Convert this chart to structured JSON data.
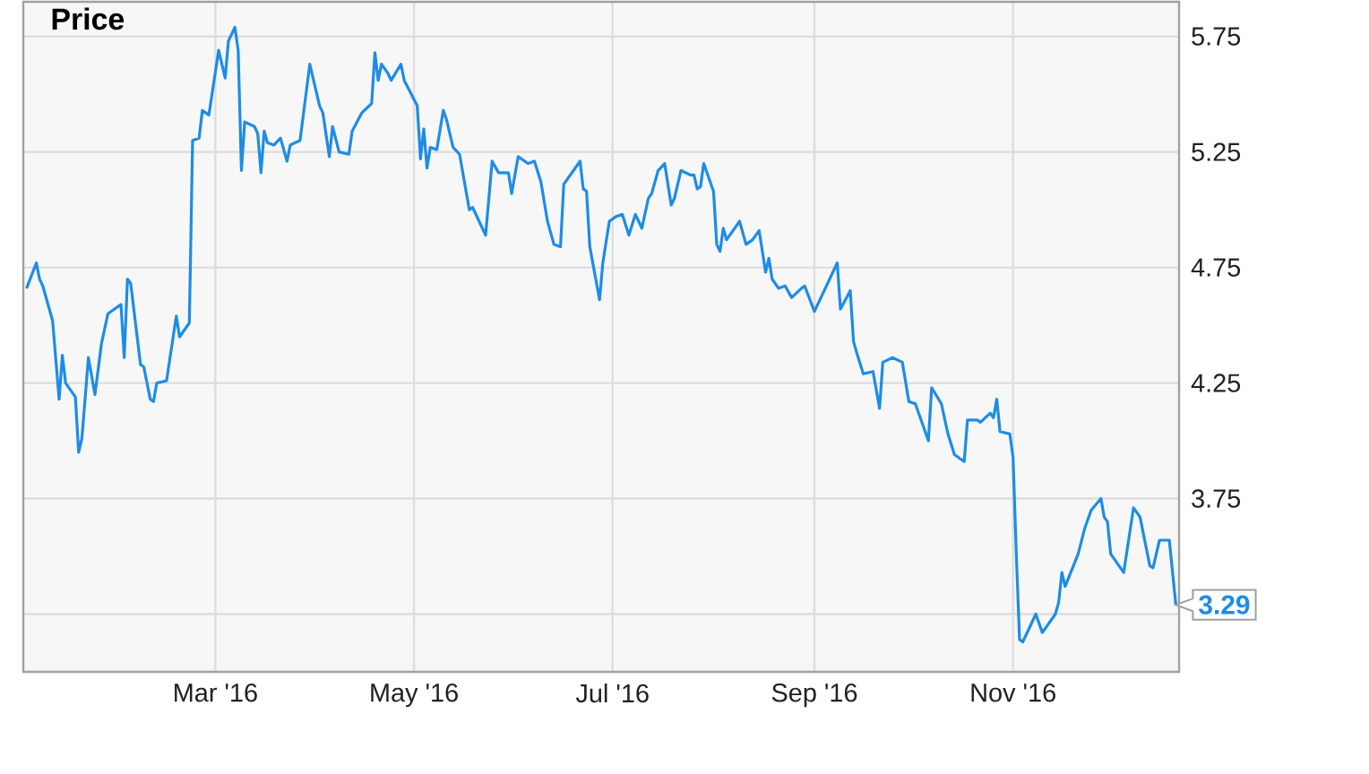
{
  "chart_data": {
    "type": "line",
    "title": "Price",
    "x": [
      "2016-01-03",
      "2016-01-06",
      "2016-01-07",
      "2016-01-08",
      "2016-01-11",
      "2016-01-13",
      "2016-01-14",
      "2016-01-15",
      "2016-01-18",
      "2016-01-19",
      "2016-01-20",
      "2016-01-22",
      "2016-01-24",
      "2016-01-26",
      "2016-01-28",
      "2016-01-30",
      "2016-02-01",
      "2016-02-02",
      "2016-02-03",
      "2016-02-04",
      "2016-02-07",
      "2016-02-08",
      "2016-02-10",
      "2016-02-11",
      "2016-02-12",
      "2016-02-15",
      "2016-02-18",
      "2016-02-19",
      "2016-02-22",
      "2016-02-23",
      "2016-02-25",
      "2016-02-26",
      "2016-02-28",
      "2016-03-02",
      "2016-03-04",
      "2016-03-05",
      "2016-03-07",
      "2016-03-08",
      "2016-03-09",
      "2016-03-10",
      "2016-03-13",
      "2016-03-14",
      "2016-03-15",
      "2016-03-16",
      "2016-03-17",
      "2016-03-19",
      "2016-03-21",
      "2016-03-23",
      "2016-03-24",
      "2016-03-27",
      "2016-03-30",
      "2016-03-31",
      "2016-04-02",
      "2016-04-03",
      "2016-04-05",
      "2016-04-06",
      "2016-04-08",
      "2016-04-11",
      "2016-04-12",
      "2016-04-15",
      "2016-04-18",
      "2016-04-19",
      "2016-04-20",
      "2016-04-21",
      "2016-04-23",
      "2016-04-24",
      "2016-04-27",
      "2016-04-28",
      "2016-05-02",
      "2016-05-03",
      "2016-05-04",
      "2016-05-05",
      "2016-05-06",
      "2016-05-08",
      "2016-05-10",
      "2016-05-11",
      "2016-05-13",
      "2016-05-15",
      "2016-05-18",
      "2016-05-19",
      "2016-05-20",
      "2016-05-23",
      "2016-05-25",
      "2016-05-27",
      "2016-05-30",
      "2016-05-31",
      "2016-06-02",
      "2016-06-05",
      "2016-06-07",
      "2016-06-09",
      "2016-06-11",
      "2016-06-13",
      "2016-06-15",
      "2016-06-16",
      "2016-06-18",
      "2016-06-21",
      "2016-06-22",
      "2016-06-23",
      "2016-06-24",
      "2016-06-27",
      "2016-06-28",
      "2016-06-30",
      "2016-07-02",
      "2016-07-04",
      "2016-07-06",
      "2016-07-08",
      "2016-07-10",
      "2016-07-12",
      "2016-07-13",
      "2016-07-15",
      "2016-07-17",
      "2016-07-19",
      "2016-07-20",
      "2016-07-22",
      "2016-07-25",
      "2016-07-26",
      "2016-07-27",
      "2016-07-28",
      "2016-07-29",
      "2016-08-01",
      "2016-08-02",
      "2016-08-03",
      "2016-08-04",
      "2016-08-05",
      "2016-08-09",
      "2016-08-11",
      "2016-08-13",
      "2016-08-15",
      "2016-08-17",
      "2016-08-18",
      "2016-08-19",
      "2016-08-21",
      "2016-08-23",
      "2016-08-25",
      "2016-08-28",
      "2016-08-29",
      "2016-09-01",
      "2016-09-08",
      "2016-09-09",
      "2016-09-12",
      "2016-09-13",
      "2016-09-14",
      "2016-09-16",
      "2016-09-19",
      "2016-09-21",
      "2016-09-22",
      "2016-09-25",
      "2016-09-28",
      "2016-09-30",
      "2016-10-02",
      "2016-10-06",
      "2016-10-07",
      "2016-10-10",
      "2016-10-12",
      "2016-10-14",
      "2016-10-17",
      "2016-10-18",
      "2016-10-21",
      "2016-10-22",
      "2016-10-25",
      "2016-10-26",
      "2016-10-27",
      "2016-10-28",
      "2016-10-31",
      "2016-11-01",
      "2016-11-02",
      "2016-11-03",
      "2016-11-04",
      "2016-11-08",
      "2016-11-10",
      "2016-11-14",
      "2016-11-15",
      "2016-11-16",
      "2016-11-17",
      "2016-11-21",
      "2016-11-23",
      "2016-11-25",
      "2016-11-28",
      "2016-11-29",
      "2016-11-30",
      "2016-12-01",
      "2016-12-05",
      "2016-12-08",
      "2016-12-10",
      "2016-12-13",
      "2016-12-14",
      "2016-12-16",
      "2016-12-19",
      "2016-12-21"
    ],
    "values": [
      4.66,
      4.77,
      4.7,
      4.67,
      4.52,
      4.18,
      4.37,
      4.25,
      4.19,
      3.95,
      4.01,
      4.36,
      4.2,
      4.42,
      4.55,
      4.57,
      4.59,
      4.36,
      4.7,
      4.68,
      4.33,
      4.32,
      4.18,
      4.17,
      4.25,
      4.26,
      4.54,
      4.45,
      4.51,
      5.3,
      5.31,
      5.43,
      5.41,
      5.69,
      5.57,
      5.73,
      5.79,
      5.69,
      5.17,
      5.38,
      5.36,
      5.33,
      5.16,
      5.34,
      5.29,
      5.28,
      5.31,
      5.21,
      5.28,
      5.3,
      5.63,
      5.57,
      5.45,
      5.42,
      5.23,
      5.36,
      5.25,
      5.24,
      5.34,
      5.42,
      5.46,
      5.68,
      5.56,
      5.63,
      5.59,
      5.56,
      5.63,
      5.56,
      5.45,
      5.22,
      5.35,
      5.18,
      5.27,
      5.26,
      5.43,
      5.39,
      5.27,
      5.24,
      5.0,
      5.01,
      4.98,
      4.89,
      5.21,
      5.16,
      5.16,
      5.07,
      5.23,
      5.2,
      5.21,
      5.12,
      4.95,
      4.85,
      4.84,
      5.11,
      5.15,
      5.21,
      5.09,
      5.08,
      4.84,
      4.61,
      4.77,
      4.95,
      4.97,
      4.98,
      4.89,
      4.98,
      4.92,
      5.05,
      5.07,
      5.17,
      5.2,
      5.02,
      5.05,
      5.17,
      5.15,
      5.15,
      5.09,
      5.1,
      5.2,
      5.08,
      4.85,
      4.82,
      4.92,
      4.87,
      4.95,
      4.85,
      4.87,
      4.91,
      4.73,
      4.79,
      4.7,
      4.66,
      4.67,
      4.62,
      4.66,
      4.67,
      4.56,
      4.77,
      4.57,
      4.65,
      4.43,
      4.38,
      4.29,
      4.3,
      4.14,
      4.34,
      4.36,
      4.34,
      4.17,
      4.16,
      4.0,
      4.23,
      4.16,
      4.03,
      3.94,
      3.91,
      4.09,
      4.09,
      4.08,
      4.12,
      4.1,
      4.18,
      4.04,
      4.03,
      3.93,
      3.51,
      3.14,
      3.13,
      3.25,
      3.17,
      3.25,
      3.3,
      3.43,
      3.37,
      3.51,
      3.62,
      3.7,
      3.75,
      3.67,
      3.65,
      3.51,
      3.43,
      3.71,
      3.67,
      3.46,
      3.45,
      3.57,
      3.57,
      3.29
    ],
    "color": "#1e8ce6",
    "xlim": [
      "2016-01-02",
      "2016-12-22"
    ],
    "ylim": [
      3.0,
      5.9
    ],
    "xticks": [
      {
        "value": "2016-03-01",
        "label": "Mar '16"
      },
      {
        "value": "2016-05-01",
        "label": "May '16"
      },
      {
        "value": "2016-07-01",
        "label": "Jul '16"
      },
      {
        "value": "2016-09-01",
        "label": "Sep '16"
      },
      {
        "value": "2016-11-01",
        "label": "Nov '16"
      }
    ],
    "yticks": [
      {
        "value": 3.25,
        "label": null
      },
      3.75,
      4.25,
      4.75,
      5.25,
      5.75
    ],
    "grid": true,
    "annotations": [
      {
        "text": "3.29",
        "x": "2016-12-21",
        "y": 3.29
      }
    ]
  }
}
